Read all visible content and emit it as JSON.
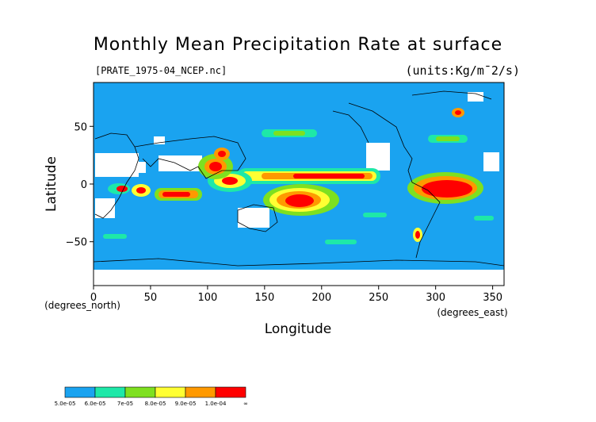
{
  "chart_data": {
    "type": "heatmap",
    "title": "Monthly Mean Precipitation Rate at surface",
    "file_label": "[PRATE_1975-04_NCEP.nc]",
    "units_label": "(units:Kg/m¯2/s)",
    "xlabel": "Longitude",
    "ylabel": "Latitude",
    "x_unit_label": "(degrees_east)",
    "y_unit_label": "(degrees_north)",
    "xlim": [
      0,
      360
    ],
    "ylim": [
      -88,
      88
    ],
    "x_ticks": [
      0,
      50,
      100,
      150,
      200,
      250,
      300,
      350
    ],
    "y_ticks": [
      50,
      0,
      -50
    ],
    "background_level": "5.0e-05",
    "colorbar": {
      "labels": [
        "5.0e-05",
        "6.0e-05",
        "7e-05",
        "8.0e-05",
        "9.0e-05",
        "1.0e-04",
        "∞"
      ],
      "colors": [
        "#1aa3f0",
        "#1ee8a8",
        "#7ee020",
        "#ffff33",
        "#ff9900",
        "#ff0000"
      ]
    },
    "high_regions": [
      {
        "lon": [
          280,
          320
        ],
        "lat": [
          -12,
          8
        ],
        "level": "1.0e-04",
        "color": "#ff0000"
      },
      {
        "lon": [
          150,
          180
        ],
        "lat": [
          -25,
          -5
        ],
        "level": "1.0e-04",
        "color": "#ff0000"
      },
      {
        "lon": [
          130,
          250
        ],
        "lat": [
          2,
          12
        ],
        "level": "9.0e-05",
        "color": "#ff9900"
      },
      {
        "lon": [
          55,
          85
        ],
        "lat": [
          -14,
          -6
        ],
        "level": "1.0e-04",
        "color": "#ff0000"
      },
      {
        "lon": [
          95,
          130
        ],
        "lat": [
          0,
          15
        ],
        "level": "1.0e-04",
        "color": "#ff0000"
      }
    ]
  }
}
